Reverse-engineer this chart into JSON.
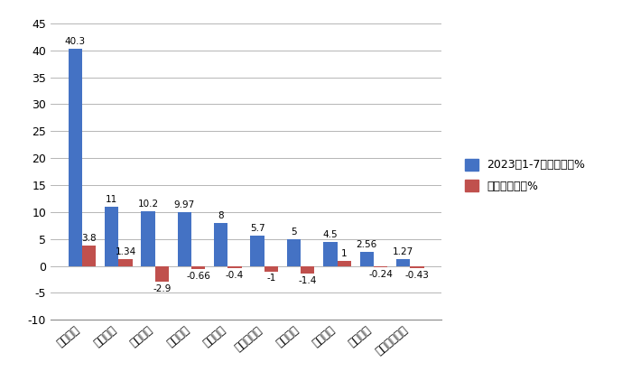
{
  "categories": [
    "长城汽车",
    "江淮汽车",
    "江铃汽车",
    "上汽大通",
    "郑州日产",
    "江西五十铃",
    "长安汽车",
    "福田汽车",
    "河北中兴",
    "上汽通用五菱"
  ],
  "market_share": [
    40.3,
    11,
    10.2,
    9.97,
    8,
    5.7,
    5,
    4.5,
    2.56,
    1.27
  ],
  "yoy_change": [
    3.8,
    1.34,
    -2.9,
    -0.66,
    -0.4,
    -1,
    -1.4,
    1,
    -0.24,
    -0.43
  ],
  "bar_color_blue": "#4472C4",
  "bar_color_red": "#C0504D",
  "ylim_min": -10,
  "ylim_max": 45,
  "yticks": [
    -10,
    -5,
    0,
    5,
    10,
    15,
    20,
    25,
    30,
    35,
    40,
    45
  ],
  "legend_label_blue": "2023年1-7月市场份额%",
  "legend_label_red": "同比份额增减%",
  "bg_color": "#FFFFFF",
  "grid_color": "#AAAAAA",
  "bar_width": 0.38,
  "label_fontsize": 7.5
}
